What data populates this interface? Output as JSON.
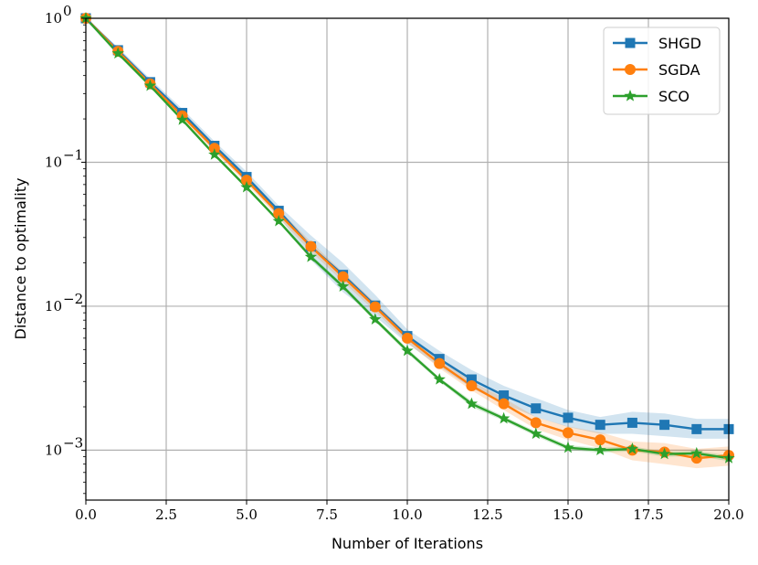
{
  "chart_data": {
    "type": "line",
    "title": "",
    "xlabel": "Number of Iterations",
    "ylabel": "Distance to optimality",
    "xlim": [
      0,
      20
    ],
    "ylim": [
      0.00045,
      1
    ],
    "yscale": "log",
    "grid": true,
    "legend_position": "top-right",
    "x_ticks": [
      "0.0",
      "2.5",
      "5.0",
      "7.5",
      "10.0",
      "12.5",
      "15.0",
      "17.5",
      "20.0"
    ],
    "y_ticks": [
      {
        "value": 1,
        "base": "10",
        "exp": "0"
      },
      {
        "value": 0.1,
        "base": "10",
        "exp": "−1"
      },
      {
        "value": 0.01,
        "base": "10",
        "exp": "−2"
      },
      {
        "value": 0.001,
        "base": "10",
        "exp": "−3"
      }
    ],
    "x": [
      0,
      1,
      2,
      3,
      4,
      5,
      6,
      7,
      8,
      9,
      10,
      11,
      12,
      13,
      14,
      15,
      16,
      17,
      18,
      19,
      20
    ],
    "series": [
      {
        "name": "SHGD",
        "color": "#1f77b4",
        "marker": "square",
        "values": [
          1.0,
          0.6,
          0.36,
          0.22,
          0.13,
          0.079,
          0.046,
          0.026,
          0.0165,
          0.0101,
          0.0062,
          0.0043,
          0.0031,
          0.0024,
          0.00195,
          0.00168,
          0.0015,
          0.00155,
          0.0015,
          0.0014,
          0.0014
        ],
        "band_lower": [
          1.0,
          0.57,
          0.34,
          0.205,
          0.12,
          0.073,
          0.042,
          0.021,
          0.0125,
          0.0085,
          0.0055,
          0.0038,
          0.0027,
          0.0021,
          0.0017,
          0.00145,
          0.0013,
          0.0013,
          0.00125,
          0.0012,
          0.0012
        ],
        "band_upper": [
          1.0,
          0.63,
          0.38,
          0.235,
          0.14,
          0.086,
          0.05,
          0.031,
          0.02,
          0.012,
          0.0069,
          0.0049,
          0.0036,
          0.0028,
          0.0023,
          0.0019,
          0.0017,
          0.00185,
          0.0018,
          0.00165,
          0.00165
        ]
      },
      {
        "name": "SGDA",
        "color": "#ff7f0e",
        "marker": "circle",
        "values": [
          1.0,
          0.59,
          0.35,
          0.21,
          0.125,
          0.075,
          0.044,
          0.026,
          0.016,
          0.0099,
          0.006,
          0.004,
          0.0028,
          0.0021,
          0.00155,
          0.00132,
          0.00118,
          0.001,
          0.00097,
          0.00088,
          0.00092
        ],
        "band_lower": [
          1.0,
          0.57,
          0.335,
          0.2,
          0.118,
          0.071,
          0.041,
          0.024,
          0.0148,
          0.0092,
          0.0056,
          0.0037,
          0.0026,
          0.0019,
          0.0014,
          0.00118,
          0.00103,
          0.00085,
          0.0008,
          0.00075,
          0.00078
        ],
        "band_upper": [
          1.0,
          0.61,
          0.365,
          0.22,
          0.132,
          0.079,
          0.047,
          0.028,
          0.0172,
          0.0106,
          0.0064,
          0.0043,
          0.003,
          0.0023,
          0.0017,
          0.00146,
          0.00133,
          0.00115,
          0.00112,
          0.00102,
          0.00106
        ]
      },
      {
        "name": "SCO",
        "color": "#2ca02c",
        "marker": "star",
        "values": [
          1.0,
          0.57,
          0.34,
          0.197,
          0.113,
          0.067,
          0.039,
          0.022,
          0.0137,
          0.0081,
          0.0049,
          0.0031,
          0.0021,
          0.00166,
          0.0013,
          0.00104,
          0.001,
          0.00102,
          0.00094,
          0.00095,
          0.00088
        ],
        "band_lower": [
          1.0,
          0.56,
          0.335,
          0.193,
          0.11,
          0.065,
          0.038,
          0.0212,
          0.0132,
          0.0078,
          0.0047,
          0.003,
          0.002,
          0.0016,
          0.00125,
          0.001,
          0.00096,
          0.00098,
          0.0009,
          0.00091,
          0.00084
        ],
        "band_upper": [
          1.0,
          0.58,
          0.345,
          0.201,
          0.116,
          0.069,
          0.04,
          0.0228,
          0.0142,
          0.0084,
          0.0051,
          0.0032,
          0.0022,
          0.00172,
          0.00135,
          0.00108,
          0.00104,
          0.00106,
          0.00098,
          0.00099,
          0.00092
        ]
      }
    ]
  }
}
